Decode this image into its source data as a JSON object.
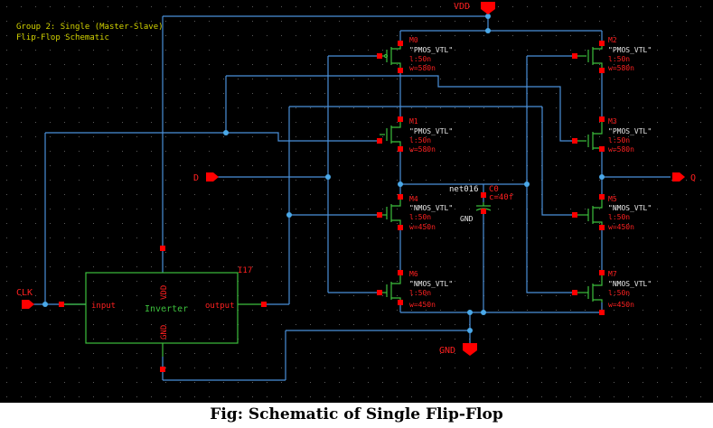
{
  "title_note": {
    "line1": "Group 2: Single (Master-Slave)",
    "line2": "Flip-Flop Schematic"
  },
  "colors": {
    "background": "#000000",
    "wire": "#4a90d9",
    "pin": "#ff0000",
    "label_red": "#ff2020",
    "device": "#3cbf3c",
    "title_text": "#d4d400",
    "pmos_text": "#e8e8e8"
  },
  "pins": {
    "vdd": "VDD",
    "gnd": "GND",
    "d": "D",
    "q": "Q",
    "clk": "CLK"
  },
  "transistors": [
    {
      "id": "M0",
      "model": "\"PMOS_VTL\"",
      "l": "l:50n",
      "w": "w=580n"
    },
    {
      "id": "M1",
      "model": "\"PMOS_VTL\"",
      "l": "l:50n",
      "w": "w=580n"
    },
    {
      "id": "M4",
      "model": "\"NMOS_VTL\"",
      "l": "l:50n",
      "w": "w=450n"
    },
    {
      "id": "M6",
      "model": "\"NMOS_VTL\"",
      "l": "l:50n",
      "w": "w=450n"
    },
    {
      "id": "M2",
      "model": "\"PMOS_VTL\"",
      "l": "l:50n",
      "w": "w=580n"
    },
    {
      "id": "M3",
      "model": "\"PMOS_VTL\"",
      "l": "l:50n",
      "w": "w=580n"
    },
    {
      "id": "M5",
      "model": "\"NMOS_VTL\"",
      "l": "l:50n",
      "w": "w=450n"
    },
    {
      "id": "M7",
      "model": "\"NMOS_VTL\"",
      "l": "l:50n",
      "w": "w=450n"
    }
  ],
  "capacitor": {
    "id": "C0",
    "net": "net016",
    "value": "c=40f",
    "gnd": "GND"
  },
  "inverter": {
    "instance": "I17",
    "name": "Inverter",
    "input": "input",
    "output": "output",
    "vdd": "VDD",
    "gnd": "GND"
  },
  "caption": "Fig: Schematic of Single Flip-Flop"
}
